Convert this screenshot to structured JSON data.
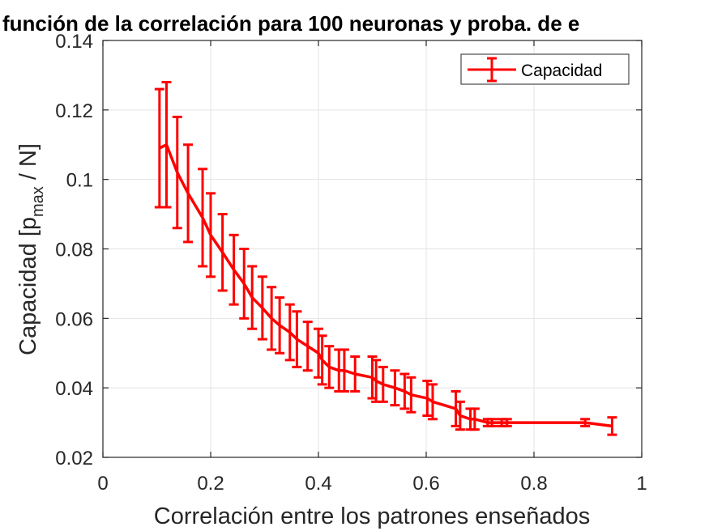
{
  "chart_data": {
    "type": "line",
    "title": "función de la correlación para 100 neuronas y proba. de e",
    "xlabel": "Correlación entre los patrones enseñados",
    "ylabel_main": "Capacidad [p",
    "ylabel_sub": "max",
    "ylabel_tail": " / N]",
    "xlim": [
      0,
      1
    ],
    "ylim": [
      0.02,
      0.14
    ],
    "xticks": [
      0,
      0.2,
      0.4,
      0.6,
      0.8,
      1
    ],
    "xtick_labels": [
      "0",
      "0.2",
      "0.4",
      "0.6",
      "0.8",
      "1"
    ],
    "yticks": [
      0.02,
      0.04,
      0.06,
      0.08,
      0.1,
      0.12,
      0.14
    ],
    "ytick_labels": [
      "0.02",
      "0.04",
      "0.06",
      "0.08",
      "0.1",
      "0.12",
      "0.14"
    ],
    "grid": true,
    "legend_position": "top-right",
    "color": "#ff0000",
    "series": [
      {
        "name": "Capacidad",
        "x": [
          0.105,
          0.118,
          0.138,
          0.158,
          0.185,
          0.2,
          0.222,
          0.243,
          0.262,
          0.277,
          0.296,
          0.313,
          0.328,
          0.347,
          0.36,
          0.38,
          0.4,
          0.407,
          0.42,
          0.438,
          0.448,
          0.468,
          0.5,
          0.507,
          0.52,
          0.542,
          0.56,
          0.572,
          0.602,
          0.612,
          0.655,
          0.663,
          0.682,
          0.69,
          0.714,
          0.722,
          0.74,
          0.75,
          0.895,
          0.945
        ],
        "y": [
          0.109,
          0.11,
          0.102,
          0.096,
          0.089,
          0.084,
          0.079,
          0.074,
          0.07,
          0.066,
          0.063,
          0.06,
          0.058,
          0.056,
          0.054,
          0.052,
          0.05,
          0.048,
          0.046,
          0.045,
          0.045,
          0.044,
          0.043,
          0.042,
          0.041,
          0.04,
          0.039,
          0.038,
          0.037,
          0.036,
          0.034,
          0.032,
          0.031,
          0.031,
          0.03,
          0.03,
          0.03,
          0.03,
          0.03,
          0.029
        ],
        "err": [
          0.017,
          0.018,
          0.016,
          0.014,
          0.014,
          0.012,
          0.011,
          0.01,
          0.01,
          0.009,
          0.009,
          0.009,
          0.008,
          0.008,
          0.008,
          0.007,
          0.007,
          0.007,
          0.006,
          0.006,
          0.006,
          0.005,
          0.006,
          0.006,
          0.005,
          0.005,
          0.005,
          0.005,
          0.005,
          0.005,
          0.005,
          0.004,
          0.003,
          0.003,
          0.001,
          0.001,
          0.001,
          0.001,
          0.001,
          0.0025
        ]
      }
    ]
  }
}
